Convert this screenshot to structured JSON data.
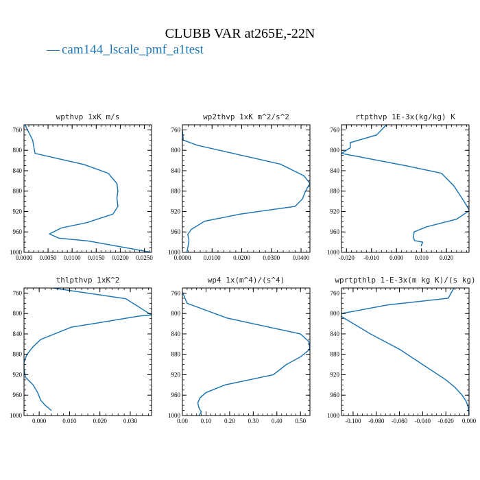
{
  "title": "CLUBB VAR at265E,-22N",
  "legend": {
    "label": "cam144_lscale_pmf_a1test",
    "color": "#1f77b4"
  },
  "chart_data": [
    {
      "type": "line",
      "title": "wpthvp   1xK m/s",
      "xlim": [
        0.0,
        0.0265
      ],
      "ylim": [
        1000,
        750
      ],
      "xticks": [
        0.0,
        0.005,
        0.01,
        0.015,
        0.02,
        0.025
      ],
      "xtick_labels": [
        "0.0000",
        "0.0050",
        "0.0100",
        "0.0150",
        "0.0200",
        "0.0250"
      ],
      "yticks": [
        760,
        800,
        840,
        880,
        920,
        960,
        1000
      ],
      "series": [
        {
          "x": [
            0.0002,
            0.0018,
            0.0023,
            0.0125,
            0.0175,
            0.0193,
            0.0195,
            0.0193,
            0.0195,
            0.0185,
            0.013,
            0.0078,
            0.0053,
            0.0072,
            0.0135,
            0.0265
          ],
          "y": [
            750,
            780,
            806,
            828,
            845,
            865,
            880,
            893,
            910,
            925,
            942,
            952,
            964,
            972,
            978,
            1000
          ]
        }
      ]
    },
    {
      "type": "line",
      "title": "wp2thvp   1xK m^2/s^2",
      "xlim": [
        0.0,
        0.043
      ],
      "ylim": [
        1000,
        750
      ],
      "xticks": [
        0.0,
        0.01,
        0.02,
        0.03,
        0.04
      ],
      "xtick_labels": [
        "0.0000",
        "0.0100",
        "0.0200",
        "0.0300",
        "0.0400"
      ],
      "yticks": [
        760,
        800,
        840,
        880,
        920,
        960,
        1000
      ],
      "series": [
        {
          "x": [
            0.0,
            0.0003,
            0.005,
            0.033,
            0.041,
            0.043,
            0.0415,
            0.0405,
            0.038,
            0.0195,
            0.0075,
            0.003,
            0.0018,
            0.0022,
            0.002,
            0.0015
          ],
          "y": [
            760,
            780,
            790,
            827,
            850,
            865,
            880,
            895,
            910,
            925,
            939,
            955,
            965,
            975,
            985,
            1000
          ]
        }
      ]
    },
    {
      "type": "line",
      "title": "rtpthvp   1E-3x(kg/kg) K",
      "xlim": [
        -0.022,
        0.029
      ],
      "ylim": [
        1000,
        750
      ],
      "xticks": [
        -0.02,
        -0.01,
        0.0,
        0.01,
        0.02
      ],
      "xtick_labels": [
        "-0.020",
        "-0.010",
        "0.000",
        "0.010",
        "0.020"
      ],
      "yticks": [
        760,
        800,
        840,
        880,
        920,
        960,
        1000
      ],
      "series": [
        {
          "x": [
            -0.004,
            -0.008,
            -0.0185,
            -0.0185,
            -0.022,
            0.0035,
            0.018,
            0.023,
            0.027,
            0.0292,
            0.024,
            0.012,
            0.007,
            0.0068,
            0.0072,
            0.0105,
            0.0098
          ],
          "y": [
            750,
            770,
            785,
            795,
            806,
            830,
            845,
            870,
            900,
            918,
            935,
            950,
            960,
            970,
            977,
            980,
            988
          ]
        }
      ]
    },
    {
      "type": "line",
      "title": "thlpthvp   1xK^2",
      "xlim": [
        -0.005,
        0.037
      ],
      "ylim": [
        1000,
        750
      ],
      "xticks": [
        0.0,
        0.01,
        0.02,
        0.03
      ],
      "xtick_labels": [
        "0.000",
        "0.010",
        "0.020",
        "0.030"
      ],
      "yticks": [
        760,
        800,
        840,
        880,
        920,
        960,
        1000
      ],
      "series": [
        {
          "x": [
            0.0045,
            0.0285,
            0.037,
            0.033,
            0.0105,
            0.0005,
            -0.002,
            -0.004,
            -0.005,
            -0.005,
            -0.0045,
            -0.002,
            -0.0005,
            0.0005,
            0.002,
            0.004
          ],
          "y": [
            750,
            771,
            803,
            805,
            827,
            851,
            865,
            880,
            895,
            910,
            925,
            940,
            955,
            970,
            980,
            990
          ]
        }
      ]
    },
    {
      "type": "line",
      "title": "wp4   1x(m^4)/(s^4)",
      "xlim": [
        0.0,
        0.54
      ],
      "ylim": [
        1000,
        750
      ],
      "xticks": [
        0.0,
        0.1,
        0.2,
        0.3,
        0.4,
        0.5
      ],
      "xtick_labels": [
        "0.00",
        "0.10",
        "0.20",
        "0.30",
        "0.40",
        "0.50"
      ],
      "yticks": [
        760,
        800,
        840,
        880,
        920,
        960,
        1000
      ],
      "series": [
        {
          "x": [
            0.0,
            0.02,
            0.19,
            0.5,
            0.535,
            0.54,
            0.5,
            0.44,
            0.385,
            0.18,
            0.1,
            0.075,
            0.065,
            0.07,
            0.08,
            0.07
          ],
          "y": [
            758,
            780,
            809,
            840,
            855,
            870,
            885,
            900,
            920,
            940,
            955,
            965,
            975,
            985,
            993,
            1000
          ]
        }
      ]
    },
    {
      "type": "line",
      "title": "wprtpthlp   1-E-3x(m kg K)/(s kg)",
      "xlim": [
        -0.11,
        0.0
      ],
      "ylim": [
        1000,
        750
      ],
      "xticks": [
        -0.1,
        -0.08,
        -0.06,
        -0.04,
        -0.02,
        0.0
      ],
      "xtick_labels": [
        "-0.100",
        "-0.080",
        "-0.060",
        "-0.040",
        "-0.020",
        "0.000"
      ],
      "yticks": [
        760,
        800,
        840,
        880,
        920,
        960,
        1000
      ],
      "series": [
        {
          "x": [
            -0.013,
            -0.018,
            -0.07,
            -0.11,
            -0.11,
            -0.085,
            -0.06,
            -0.04,
            -0.02,
            -0.012,
            -0.006,
            -0.0025,
            -0.0005,
            0.0
          ],
          "y": [
            750,
            770,
            783,
            800,
            806,
            840,
            870,
            900,
            930,
            945,
            960,
            972,
            985,
            1000
          ]
        }
      ]
    }
  ]
}
